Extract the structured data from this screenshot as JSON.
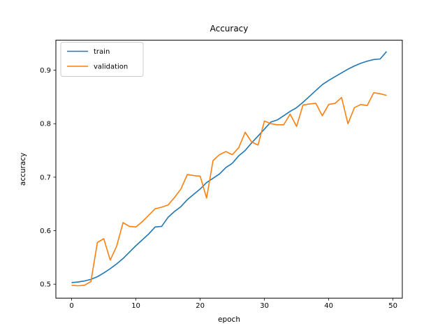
{
  "figure": {
    "background": "#ffffff",
    "spine_color": "#000000",
    "text_color": "#000000"
  },
  "chart_data": {
    "type": "line",
    "title": "Accuracy",
    "xlabel": "epoch",
    "ylabel": "accuracy",
    "x": [
      0,
      1,
      2,
      3,
      4,
      5,
      6,
      7,
      8,
      9,
      10,
      11,
      12,
      13,
      14,
      15,
      16,
      17,
      18,
      19,
      20,
      21,
      22,
      23,
      24,
      25,
      26,
      27,
      28,
      29,
      30,
      31,
      32,
      33,
      34,
      35,
      36,
      37,
      38,
      39,
      40,
      41,
      42,
      43,
      44,
      45,
      46,
      47,
      48,
      49
    ],
    "series": [
      {
        "name": "train",
        "color": "#1f77b4",
        "values": [
          0.503,
          0.504,
          0.506,
          0.509,
          0.514,
          0.521,
          0.529,
          0.538,
          0.548,
          0.56,
          0.572,
          0.583,
          0.594,
          0.607,
          0.608,
          0.625,
          0.636,
          0.645,
          0.658,
          0.668,
          0.678,
          0.69,
          0.698,
          0.706,
          0.718,
          0.726,
          0.74,
          0.75,
          0.764,
          0.777,
          0.79,
          0.803,
          0.807,
          0.815,
          0.823,
          0.83,
          0.84,
          0.851,
          0.862,
          0.873,
          0.881,
          0.888,
          0.895,
          0.902,
          0.908,
          0.913,
          0.917,
          0.92,
          0.921,
          0.935
        ]
      },
      {
        "name": "validation",
        "color": "#ff7f0e",
        "values": [
          0.498,
          0.497,
          0.498,
          0.505,
          0.578,
          0.585,
          0.545,
          0.571,
          0.615,
          0.608,
          0.607,
          0.617,
          0.629,
          0.641,
          0.644,
          0.648,
          0.662,
          0.678,
          0.705,
          0.703,
          0.702,
          0.661,
          0.731,
          0.742,
          0.748,
          0.742,
          0.755,
          0.784,
          0.766,
          0.76,
          0.805,
          0.8,
          0.798,
          0.798,
          0.818,
          0.795,
          0.835,
          0.837,
          0.838,
          0.815,
          0.836,
          0.838,
          0.849,
          0.8,
          0.83,
          0.836,
          0.834,
          0.858,
          0.856,
          0.853
        ]
      }
    ],
    "xlim": [
      -2.45,
      51.45
    ],
    "ylim": [
      0.4739,
      0.9561
    ],
    "xticks": [
      0,
      10,
      20,
      30,
      40,
      50
    ],
    "yticks": [
      0.5,
      0.6,
      0.7,
      0.8,
      0.9
    ],
    "grid": false,
    "legend": {
      "position": "upper-left",
      "entries": [
        {
          "label": "train",
          "color": "#1f77b4"
        },
        {
          "label": "validation",
          "color": "#ff7f0e"
        }
      ]
    }
  }
}
